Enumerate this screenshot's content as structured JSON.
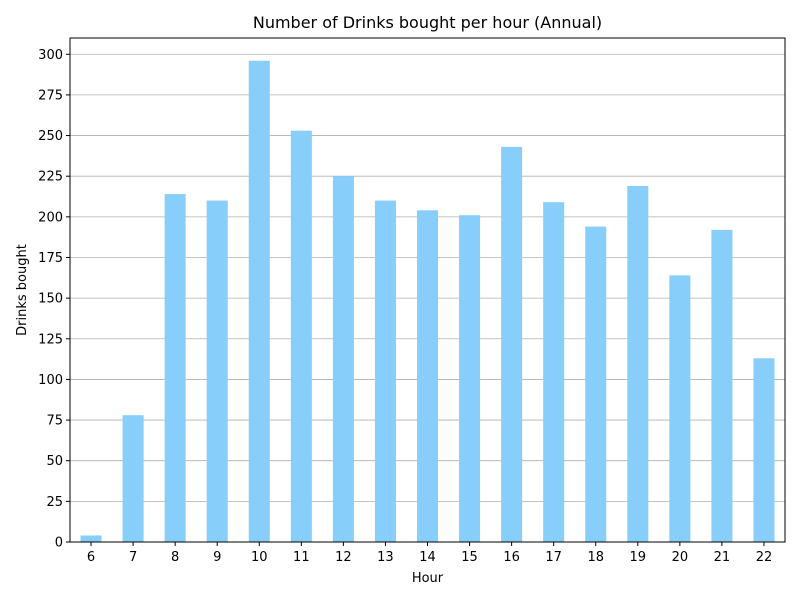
{
  "chart_data": {
    "type": "bar",
    "title": "Number of Drinks bought per hour (Annual)",
    "xlabel": "Hour",
    "ylabel": "Drinks bought",
    "categories": [
      "6",
      "7",
      "8",
      "9",
      "10",
      "11",
      "12",
      "13",
      "14",
      "15",
      "16",
      "17",
      "18",
      "19",
      "20",
      "21",
      "22"
    ],
    "values": [
      4,
      78,
      214,
      210,
      296,
      253,
      225,
      210,
      204,
      201,
      243,
      209,
      194,
      219,
      164,
      192,
      113
    ],
    "ylim": [
      0,
      310
    ],
    "yticks": [
      0,
      25,
      50,
      75,
      100,
      125,
      150,
      175,
      200,
      225,
      250,
      275,
      300
    ],
    "grid": "horizontal",
    "bar_color": "#87CEFA",
    "grid_color": "#b0b0b0"
  }
}
